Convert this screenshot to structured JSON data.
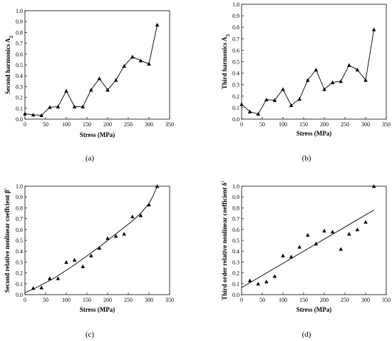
{
  "chart_data": [
    {
      "type": "line",
      "panel_label": "(a)",
      "xlabel": "Stress (MPa)",
      "ylabel": "Second harmonics A",
      "ylabel_sub": "2",
      "xlim": [
        0,
        350
      ],
      "ylim": [
        0,
        1.0
      ],
      "xticks": [
        "0",
        "50",
        "100",
        "150",
        "200",
        "250",
        "300",
        "350"
      ],
      "yticks": [
        "0.0",
        "0.1",
        "0.2",
        "0.3",
        "0.4",
        "0.5",
        "0.6",
        "0.7",
        "0.8",
        "0.9",
        "1.0"
      ],
      "series": [
        {
          "marker": "triangle",
          "x": [
            0,
            20,
            40,
            60,
            80,
            100,
            120,
            140,
            160,
            180,
            200,
            220,
            240,
            260,
            280,
            300,
            320
          ],
          "y": [
            0.05,
            0.04,
            0.035,
            0.11,
            0.115,
            0.26,
            0.115,
            0.115,
            0.27,
            0.375,
            0.27,
            0.36,
            0.49,
            0.575,
            0.54,
            0.51,
            0.87
          ]
        }
      ]
    },
    {
      "type": "line",
      "panel_label": "(b)",
      "xlabel": "Stress (MPa)",
      "ylabel": "Third harmonics A",
      "ylabel_sub": "3",
      "xlim": [
        0,
        350
      ],
      "ylim": [
        0,
        1.0
      ],
      "xticks": [
        "0",
        "50",
        "100",
        "150",
        "200",
        "250",
        "300",
        "350"
      ],
      "yticks": [
        "0.0",
        "0.1",
        "0.2",
        "0.3",
        "0.4",
        "0.5",
        "0.6",
        "0.7",
        "0.8",
        "0.9",
        "1.0"
      ],
      "series": [
        {
          "marker": "triangle",
          "x": [
            0,
            20,
            40,
            60,
            80,
            100,
            120,
            140,
            160,
            180,
            200,
            220,
            240,
            260,
            280,
            300,
            320
          ],
          "y": [
            0.13,
            0.065,
            0.045,
            0.17,
            0.165,
            0.26,
            0.12,
            0.175,
            0.34,
            0.43,
            0.26,
            0.32,
            0.33,
            0.47,
            0.43,
            0.34,
            0.78
          ]
        }
      ]
    },
    {
      "type": "scatter",
      "panel_label": "(c)",
      "xlabel": "Stress (MPa)",
      "ylabel": "Second relative nonlinear coeffcient β'",
      "xlim": [
        0,
        350
      ],
      "ylim": [
        0,
        1.0
      ],
      "xticks": [
        "0",
        "50",
        "100",
        "150",
        "200",
        "250",
        "300",
        "350"
      ],
      "yticks": [
        "0.0",
        "0.1",
        "0.2",
        "0.3",
        "0.4",
        "0.5",
        "0.6",
        "0.7",
        "0.8",
        "0.9",
        "1.0"
      ],
      "series": [
        {
          "marker": "triangle",
          "x": [
            20,
            40,
            60,
            80,
            100,
            120,
            140,
            160,
            180,
            200,
            220,
            240,
            260,
            280,
            300,
            320
          ],
          "y": [
            0.06,
            0.065,
            0.15,
            0.15,
            0.3,
            0.32,
            0.26,
            0.36,
            0.43,
            0.52,
            0.54,
            0.56,
            0.72,
            0.73,
            0.83,
            1.0
          ]
        }
      ],
      "fit": {
        "x": [
          0,
          20,
          40,
          60,
          80,
          100,
          120,
          140,
          160,
          180,
          200,
          220,
          240,
          260,
          280,
          290,
          300,
          310,
          320
        ],
        "y": [
          0.02,
          0.05,
          0.09,
          0.13,
          0.175,
          0.225,
          0.275,
          0.33,
          0.385,
          0.44,
          0.5,
          0.56,
          0.62,
          0.68,
          0.75,
          0.795,
          0.84,
          0.91,
          1.0
        ]
      }
    },
    {
      "type": "scatter",
      "panel_label": "(d)",
      "xlabel": "Stress (MPa)",
      "ylabel": "Third order relative nonlinear coefficient δ'",
      "xlim": [
        0,
        350
      ],
      "ylim": [
        0,
        1.0
      ],
      "xticks": [
        "0",
        "50",
        "100",
        "150",
        "200",
        "250",
        "300",
        "350"
      ],
      "yticks": [
        "0.0",
        "0.1",
        "0.2",
        "0.3",
        "0.4",
        "0.5",
        "0.6",
        "0.7",
        "0.8",
        "0.9",
        "1.0"
      ],
      "series": [
        {
          "marker": "triangle",
          "x": [
            20,
            40,
            60,
            80,
            100,
            120,
            140,
            160,
            180,
            200,
            220,
            240,
            260,
            280,
            300,
            320
          ],
          "y": [
            0.13,
            0.1,
            0.12,
            0.17,
            0.36,
            0.35,
            0.44,
            0.55,
            0.47,
            0.59,
            0.58,
            0.42,
            0.56,
            0.6,
            0.67,
            1.0
          ]
        }
      ],
      "fit": {
        "x": [
          0,
          320
        ],
        "y": [
          0.065,
          0.78
        ]
      }
    }
  ]
}
